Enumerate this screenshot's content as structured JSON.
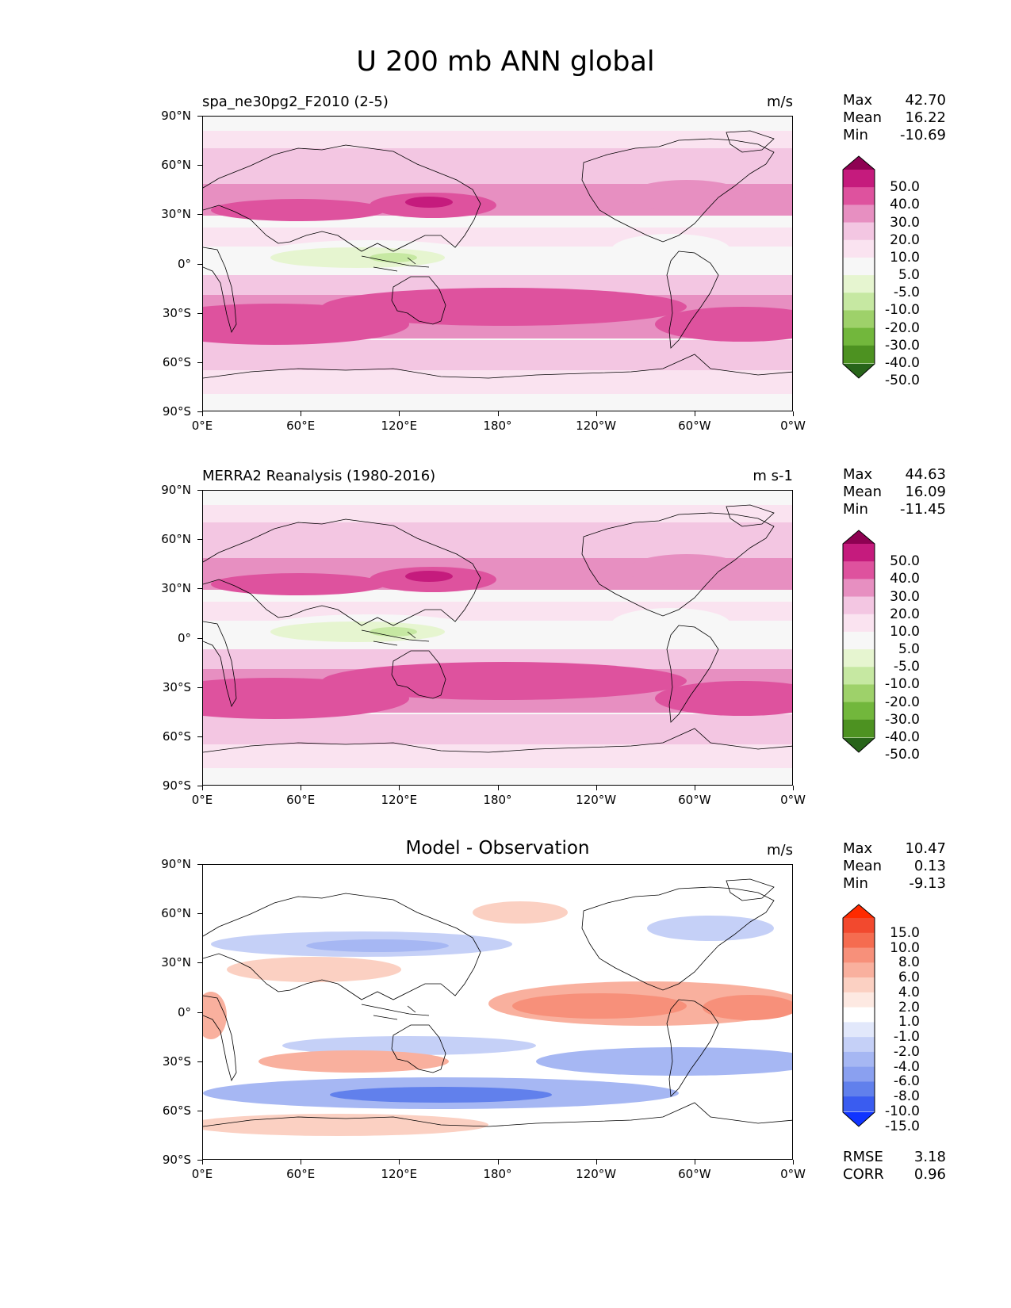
{
  "figure_title": "U 200 mb ANN global",
  "y_ticks": [
    "90°N",
    "60°N",
    "30°N",
    "0°",
    "30°S",
    "60°S",
    "90°S"
  ],
  "x_ticks": [
    "0°E",
    "60°E",
    "120°E",
    "180°",
    "120°W",
    "60°W",
    "0°W"
  ],
  "panels": [
    {
      "title": "spa_ne30pg2_F2010 (2-5)",
      "units": "m/s",
      "stats": [
        {
          "label": "Max",
          "value": "42.70"
        },
        {
          "label": "Mean",
          "value": "16.22"
        },
        {
          "label": "Min",
          "value": "-10.69"
        }
      ],
      "colorbar_levels": [
        "50.0",
        "40.0",
        "30.0",
        "20.0",
        "10.0",
        "5.0",
        "-5.0",
        "-10.0",
        "-20.0",
        "-30.0",
        "-40.0",
        "-50.0"
      ],
      "colorbar_colors": [
        "#8e0152",
        "#c51b7d",
        "#de529e",
        "#e78fc1",
        "#f3c6e2",
        "#fae3f0",
        "#f7f7f7",
        "#e6f5d0",
        "#c6e8a2",
        "#9ed16a",
        "#72b73c",
        "#4d9221",
        "#276419"
      ]
    },
    {
      "title": "MERRA2 Reanalysis (1980-2016)",
      "units": "m s-1",
      "stats": [
        {
          "label": "Max",
          "value": "44.63"
        },
        {
          "label": "Mean",
          "value": "16.09"
        },
        {
          "label": "Min",
          "value": "-11.45"
        }
      ],
      "colorbar_levels": [
        "50.0",
        "40.0",
        "30.0",
        "20.0",
        "10.0",
        "5.0",
        "-5.0",
        "-10.0",
        "-20.0",
        "-30.0",
        "-40.0",
        "-50.0"
      ],
      "colorbar_colors": [
        "#8e0152",
        "#c51b7d",
        "#de529e",
        "#e78fc1",
        "#f3c6e2",
        "#fae3f0",
        "#f7f7f7",
        "#e6f5d0",
        "#c6e8a2",
        "#9ed16a",
        "#72b73c",
        "#4d9221",
        "#276419"
      ]
    },
    {
      "title": "Model - Observation",
      "units": "m/s",
      "stats": [
        {
          "label": "Max",
          "value": "10.47"
        },
        {
          "label": "Mean",
          "value": "0.13"
        },
        {
          "label": "Min",
          "value": "-9.13"
        }
      ],
      "extra_stats": [
        {
          "label": "RMSE",
          "value": "3.18"
        },
        {
          "label": "CORR",
          "value": "0.96"
        }
      ],
      "colorbar_levels": [
        "15.0",
        "10.0",
        "8.0",
        "6.0",
        "4.0",
        "2.0",
        "1.0",
        "-1.0",
        "-2.0",
        "-4.0",
        "-6.0",
        "-8.0",
        "-10.0",
        "-15.0"
      ],
      "colorbar_colors": [
        "#ff2a00",
        "#f2492e",
        "#f56c50",
        "#f7907a",
        "#f9b09e",
        "#fbd0c2",
        "#fde9e2",
        "#ffffff",
        "#e2e8fb",
        "#c5d0f7",
        "#a6b7f3",
        "#8aa0f0",
        "#6180ec",
        "#3a5cf0",
        "#1034ff"
      ]
    }
  ]
}
